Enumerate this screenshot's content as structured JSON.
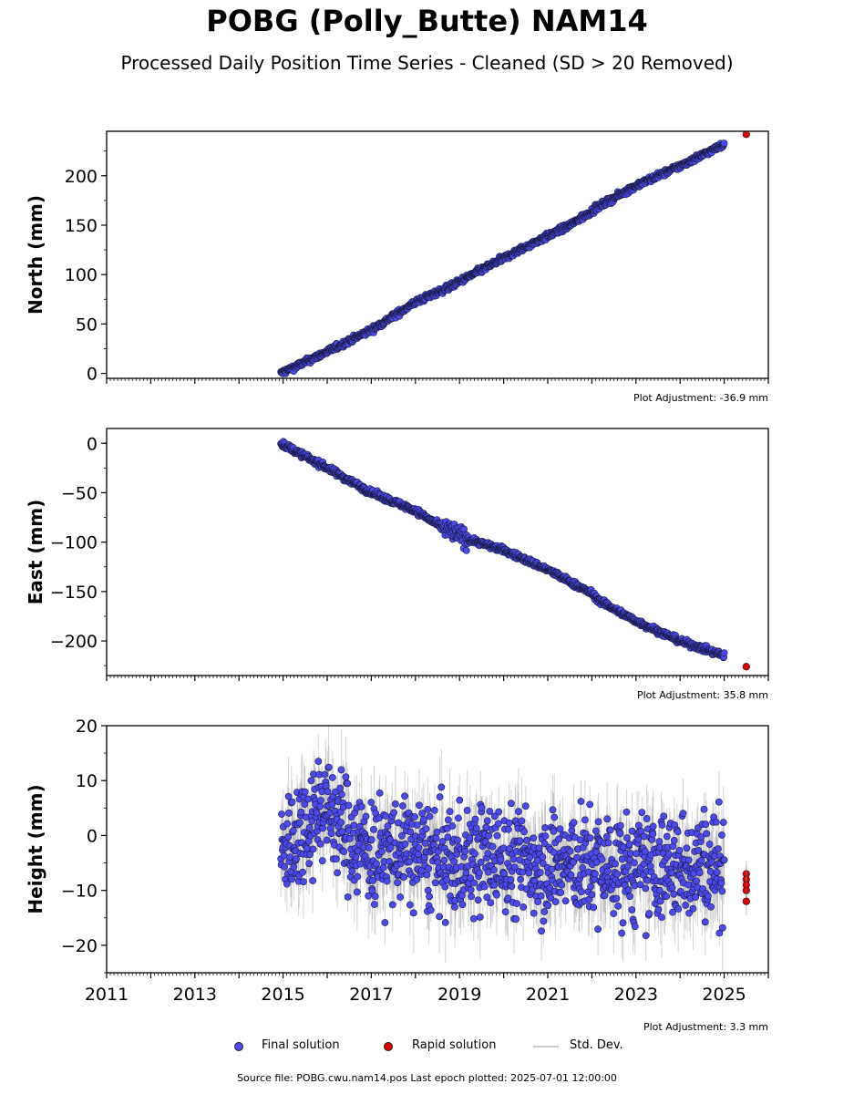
{
  "title": "POBG (Polly_Butte) NAM14",
  "subtitle": "Processed Daily Position Time Series - Cleaned (SD > 20 Removed)",
  "footer": "Source file: POBG.cwu.nam14.pos  Last epoch plotted: 2025-07-01 12:00:00",
  "legend": {
    "final": "Final solution",
    "rapid": "Rapid solution",
    "std": "Std. Dev."
  },
  "colors": {
    "final": "#4a4aef",
    "rapid": "#e00000",
    "std": "#888888"
  },
  "chart_data": [
    {
      "type": "scatter",
      "ylabel": "North (mm)",
      "adjustment": "Plot Adjustment: -36.9 mm",
      "xlim": [
        2011,
        2026
      ],
      "ylim": [
        -5,
        245
      ],
      "yticks": [
        0,
        50,
        100,
        150,
        200
      ],
      "ytick_labels": [
        "0",
        "50",
        "100",
        "150",
        "200"
      ],
      "final_trend": [
        [
          2014.95,
          0
        ],
        [
          2016.0,
          22
        ],
        [
          2017.0,
          44
        ],
        [
          2018.0,
          72
        ],
        [
          2018.8,
          88
        ],
        [
          2019.5,
          105
        ],
        [
          2020.5,
          128
        ],
        [
          2021.5,
          150
        ],
        [
          2022.2,
          170
        ],
        [
          2023.0,
          190
        ],
        [
          2024.0,
          210
        ],
        [
          2025.0,
          232
        ]
      ],
      "final_noise": 1.5,
      "rapid": [
        [
          2025.5,
          242
        ]
      ]
    },
    {
      "type": "scatter",
      "ylabel": "East (mm)",
      "adjustment": "Plot Adjustment: 35.8 mm",
      "xlim": [
        2011,
        2026
      ],
      "ylim": [
        -235,
        15
      ],
      "yticks": [
        0,
        -50,
        -100,
        -150,
        -200
      ],
      "ytick_labels": [
        "0",
        "−50",
        "−100",
        "−150",
        "−200"
      ],
      "final_trend": [
        [
          2014.95,
          0
        ],
        [
          2016.0,
          -25
        ],
        [
          2017.0,
          -50
        ],
        [
          2018.0,
          -68
        ],
        [
          2018.6,
          -85
        ],
        [
          2019.2,
          -97
        ],
        [
          2020.0,
          -108
        ],
        [
          2021.0,
          -128
        ],
        [
          2022.0,
          -152
        ],
        [
          2022.2,
          -160
        ],
        [
          2023.0,
          -180
        ],
        [
          2024.0,
          -200
        ],
        [
          2025.0,
          -215
        ]
      ],
      "final_noise": 1.5,
      "rapid": [
        [
          2025.5,
          -226
        ]
      ]
    },
    {
      "type": "scatter",
      "ylabel": "Height (mm)",
      "adjustment": "Plot Adjustment: 3.3 mm",
      "xlim": [
        2011,
        2026
      ],
      "ylim": [
        -25,
        20
      ],
      "yticks": [
        20,
        10,
        0,
        -10,
        -20
      ],
      "ytick_labels": [
        "20",
        "10",
        "0",
        "−10",
        "−20"
      ],
      "xticks": [
        2011,
        2013,
        2015,
        2017,
        2019,
        2021,
        2023,
        2025
      ],
      "xtick_labels": [
        "2011",
        "2013",
        "2015",
        "2017",
        "2019",
        "2021",
        "2023",
        "2025"
      ],
      "final_trend": [
        [
          2014.95,
          -3
        ],
        [
          2015.5,
          2
        ],
        [
          2015.9,
          6
        ],
        [
          2016.5,
          0
        ],
        [
          2017.0,
          -3
        ],
        [
          2018.0,
          -3
        ],
        [
          2018.8,
          -5
        ],
        [
          2019.5,
          -4
        ],
        [
          2020.5,
          -5
        ],
        [
          2021.5,
          -5
        ],
        [
          2022.5,
          -6
        ],
        [
          2023.5,
          -6
        ],
        [
          2024.5,
          -5
        ],
        [
          2025.0,
          -5
        ]
      ],
      "final_noise": 5,
      "rapid": [
        [
          2025.5,
          -7
        ],
        [
          2025.5,
          -8
        ],
        [
          2025.5,
          -9
        ],
        [
          2025.5,
          -10
        ],
        [
          2025.5,
          -12
        ]
      ]
    }
  ]
}
